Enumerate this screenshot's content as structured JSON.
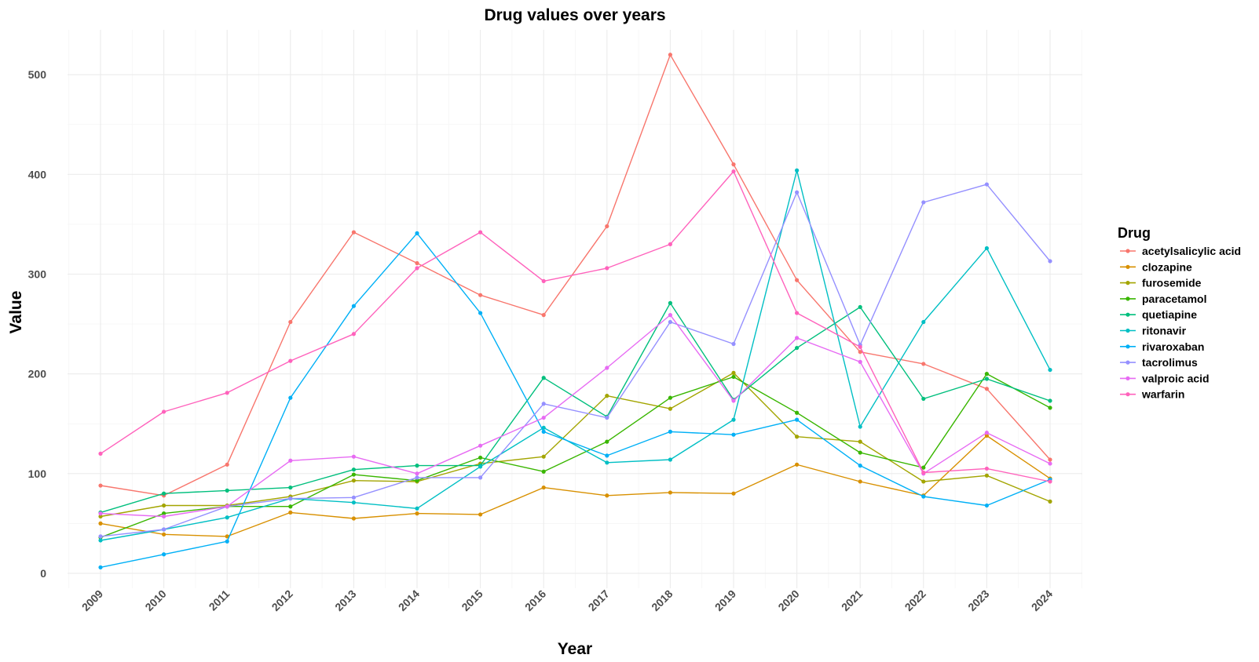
{
  "chart_data": {
    "type": "line",
    "title": "Drug values over years",
    "xlabel": "Year",
    "ylabel": "Value",
    "legend_title": "Drug",
    "legend_position": "right",
    "grid": true,
    "x": [
      "2009",
      "2010",
      "2011",
      "2012",
      "2013",
      "2014",
      "2015",
      "2016",
      "2017",
      "2018",
      "2019",
      "2020",
      "2021",
      "2022",
      "2023",
      "2024"
    ],
    "ylim": [
      -15,
      545
    ],
    "yticks": [
      0,
      100,
      200,
      300,
      400,
      500
    ],
    "series": [
      {
        "name": "acetylsalicylic acid",
        "color": "#F8766D",
        "values": [
          88,
          78,
          109,
          252,
          342,
          311,
          279,
          259,
          348,
          520,
          410,
          294,
          222,
          210,
          185,
          114
        ]
      },
      {
        "name": "clozapine",
        "color": "#D89000",
        "values": [
          50,
          39,
          37,
          61,
          55,
          60,
          59,
          86,
          78,
          81,
          80,
          109,
          92,
          78,
          138,
          95
        ]
      },
      {
        "name": "furosemide",
        "color": "#A3A500",
        "values": [
          57,
          68,
          68,
          77,
          93,
          92,
          110,
          117,
          178,
          165,
          201,
          137,
          132,
          92,
          98,
          72
        ]
      },
      {
        "name": "paracetamol",
        "color": "#39B600",
        "values": [
          36,
          60,
          67,
          67,
          99,
          93,
          116,
          102,
          132,
          176,
          197,
          161,
          121,
          106,
          200,
          166
        ]
      },
      {
        "name": "quetiapine",
        "color": "#00BF7D",
        "values": [
          61,
          80,
          83,
          86,
          104,
          108,
          108,
          196,
          157,
          271,
          174,
          226,
          267,
          175,
          195,
          173
        ]
      },
      {
        "name": "ritonavir",
        "color": "#00BFC4",
        "values": [
          33,
          44,
          56,
          75,
          71,
          65,
          107,
          146,
          111,
          114,
          154,
          404,
          147,
          252,
          326,
          204
        ]
      },
      {
        "name": "rivaroxaban",
        "color": "#00B0F6",
        "values": [
          6,
          19,
          32,
          176,
          268,
          341,
          261,
          142,
          118,
          142,
          139,
          154,
          108,
          77,
          68,
          94
        ]
      },
      {
        "name": "tacrolimus",
        "color": "#9590FF",
        "values": [
          37,
          44,
          67,
          75,
          76,
          96,
          96,
          170,
          156,
          252,
          230,
          382,
          229,
          372,
          390,
          313
        ]
      },
      {
        "name": "valproic acid",
        "color": "#E76BF3",
        "values": [
          60,
          57,
          67,
          113,
          117,
          100,
          128,
          156,
          206,
          259,
          173,
          236,
          212,
          100,
          141,
          110
        ]
      },
      {
        "name": "warfarin",
        "color": "#FF62BC",
        "values": [
          120,
          162,
          181,
          213,
          240,
          306,
          342,
          293,
          306,
          330,
          403,
          261,
          227,
          101,
          105,
          92
        ]
      }
    ]
  }
}
